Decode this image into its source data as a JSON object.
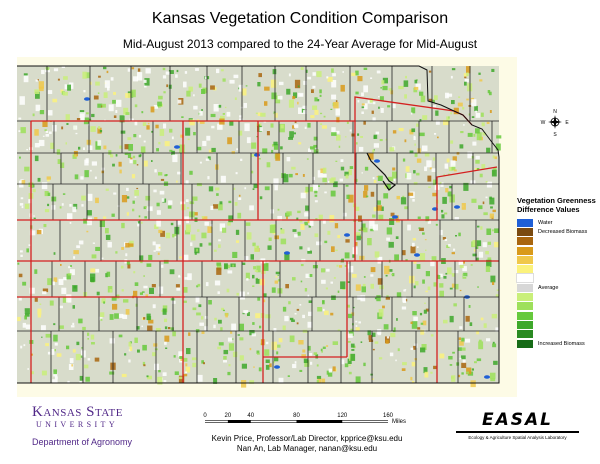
{
  "title": "Kansas Vegetation Condition Comparison",
  "subtitle": "Mid-August 2013 compared to the 24-Year Average for Mid-August",
  "compass": {
    "n": "N",
    "s": "S",
    "e": "E",
    "w": "W"
  },
  "legend": {
    "title": "Vegetation Greenness Difference Values",
    "items": [
      {
        "label": "Water",
        "color": "#1f5fd6"
      },
      {
        "label": "Decreased Biomass",
        "color": "#7a4a10"
      },
      {
        "label": "",
        "color": "#a9660f"
      },
      {
        "label": "",
        "color": "#d99a1a"
      },
      {
        "label": "",
        "color": "#f0c84a"
      },
      {
        "label": "",
        "color": "#fbf27c"
      },
      {
        "label": "",
        "color": "#ffffff"
      },
      {
        "label": "Average",
        "color": "#d7d7d7"
      },
      {
        "label": "",
        "color": "#c9ef7a"
      },
      {
        "label": "",
        "color": "#9ee05b"
      },
      {
        "label": "",
        "color": "#66c93c"
      },
      {
        "label": "",
        "color": "#3ea82b"
      },
      {
        "label": "",
        "color": "#2a8a22"
      },
      {
        "label": "Increased Biomass",
        "color": "#166b17"
      }
    ]
  },
  "scale": {
    "ticks": [
      "0",
      "20",
      "40",
      "80",
      "120",
      "160"
    ],
    "unit": "Miles"
  },
  "logo": {
    "name": "Kansas State",
    "university": "UNIVERSITY",
    "department": "Department of Agronomy"
  },
  "credits": {
    "line1": "Kevin Price, Professor/Lab Director, kpprice@ksu.edu",
    "line2": "Nan An, Lab Manager, nanan@ksu.edu"
  },
  "easal": {
    "name": "EASAL",
    "subtitle": "Ecology & Agriculture Spatial Analysis Laboratory"
  },
  "map_colors": {
    "background": "#fdfbe6",
    "state_fill": "#d8dccb",
    "county_line": "#222222",
    "district_line": "#d42020",
    "outline": "#111111"
  }
}
